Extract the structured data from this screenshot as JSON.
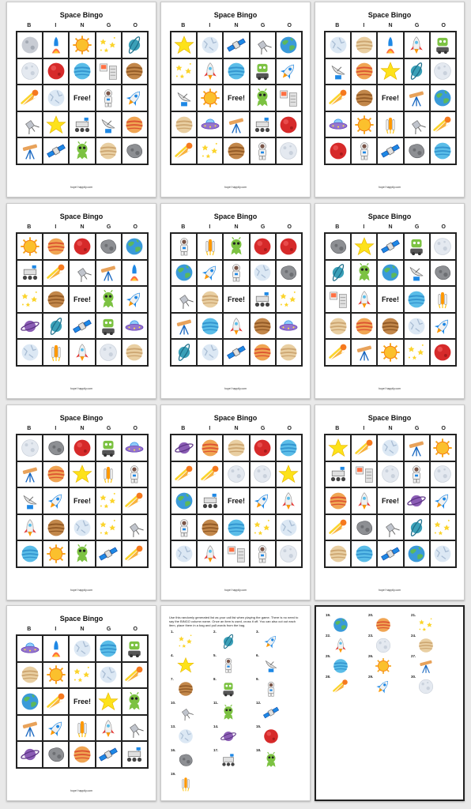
{
  "cards": [
    {
      "title": "Space Bingo",
      "letters": [
        "B",
        "I",
        "N",
        "G",
        "O"
      ],
      "footer": "hope! happily.com",
      "cells": [
        "planet-gray",
        "rocket-launch",
        "sun",
        "stars",
        "planet-ring-blue",
        "moon",
        "planet-red",
        "planet-blue",
        "mission-control",
        "planet-brown",
        "comet",
        "planet-ice",
        "free",
        "astronaut",
        "rocket-blue",
        "satellite",
        "star",
        "rover",
        "satellite-dish",
        "planet-jupiter",
        "telescope",
        "satellite-solar",
        "alien",
        "planet-tan",
        "asteroid"
      ]
    },
    {
      "title": "Space Bingo",
      "letters": [
        "B",
        "I",
        "N",
        "G",
        "O"
      ],
      "footer": "hope! happily.com",
      "cells": [
        "star",
        "planet-ice",
        "satellite-solar",
        "satellite",
        "earth",
        "stars",
        "rocket",
        "planet-blue",
        "alien-robot",
        "rocket-blue",
        "satellite-dish",
        "sun",
        "free",
        "alien",
        "mission-control",
        "planet-tan",
        "ufo",
        "telescope",
        "rover",
        "planet-red",
        "comet",
        "stars",
        "planet-brown",
        "astronaut",
        "moon"
      ]
    },
    {
      "title": "Space Bingo",
      "letters": [
        "B",
        "I",
        "N",
        "G",
        "O"
      ],
      "footer": "hope! happily.com",
      "cells": [
        "planet-ice",
        "planet-tan",
        "rocket-launch",
        "rocket",
        "alien-robot",
        "satellite-dish",
        "planet-jupiter",
        "star",
        "planet-ring-blue",
        "moon",
        "comet",
        "planet-brown",
        "free",
        "telescope",
        "earth",
        "ufo",
        "sun",
        "space-shuttle",
        "satellite",
        "comet",
        "planet-red",
        "astronaut",
        "satellite-solar",
        "asteroid",
        "planet-blue"
      ]
    },
    {
      "title": "Space Bingo",
      "letters": [
        "B",
        "I",
        "N",
        "G",
        "O"
      ],
      "footer": "hope! happily.com",
      "cells": [
        "sun",
        "planet-jupiter",
        "planet-red",
        "asteroid",
        "earth",
        "rover",
        "comet",
        "satellite",
        "telescope",
        "rocket-launch",
        "stars",
        "planet-brown",
        "free",
        "alien",
        "rocket-blue",
        "planet-purple",
        "planet-ring-blue",
        "satellite-solar",
        "alien-robot",
        "ufo",
        "planet-ice",
        "space-shuttle",
        "rocket",
        "moon",
        "planet-tan"
      ]
    },
    {
      "title": "Space Bingo",
      "letters": [
        "B",
        "I",
        "N",
        "G",
        "O"
      ],
      "footer": "hope! happily.com",
      "cells": [
        "astronaut",
        "space-shuttle",
        "alien",
        "planet-red",
        "planet-red",
        "earth",
        "rocket-blue",
        "astronaut",
        "planet-ice",
        "asteroid",
        "satellite",
        "planet-tan",
        "free",
        "rover",
        "stars",
        "telescope",
        "planet-blue",
        "rocket",
        "planet-brown",
        "ufo",
        "planet-ring-blue",
        "planet-ice",
        "satellite-solar",
        "planet-jupiter",
        "planet-tan"
      ]
    },
    {
      "title": "Space Bingo",
      "letters": [
        "B",
        "I",
        "N",
        "G",
        "O"
      ],
      "footer": "hope! happily.com",
      "cells": [
        "asteroid",
        "star",
        "satellite-solar",
        "alien-robot",
        "moon",
        "planet-ring-blue",
        "alien",
        "earth",
        "satellite-dish",
        "asteroid",
        "mission-control",
        "rocket",
        "free",
        "planet-blue",
        "space-shuttle",
        "planet-tan",
        "planet-jupiter",
        "planet-brown",
        "planet-ice",
        "rocket-blue",
        "comet",
        "telescope",
        "sun",
        "stars",
        "planet-red"
      ]
    },
    {
      "title": "Space Bingo",
      "letters": [
        "B",
        "I",
        "N",
        "G",
        "O"
      ],
      "footer": "hope! happily.com",
      "cells": [
        "moon",
        "asteroid",
        "planet-red",
        "alien-robot",
        "ufo",
        "telescope",
        "planet-jupiter",
        "star",
        "space-shuttle",
        "astronaut",
        "satellite-dish",
        "rocket-blue",
        "free",
        "stars",
        "comet",
        "rocket",
        "planet-brown",
        "planet-ice",
        "stars",
        "satellite",
        "planet-blue",
        "sun",
        "alien",
        "satellite-solar",
        "comet"
      ]
    },
    {
      "title": "Space Bingo",
      "letters": [
        "B",
        "I",
        "N",
        "G",
        "O"
      ],
      "footer": "hope! happily.com",
      "cells": [
        "planet-purple",
        "planet-jupiter",
        "planet-tan",
        "planet-red",
        "planet-blue",
        "comet",
        "comet",
        "moon",
        "moon",
        "star",
        "earth",
        "rover",
        "free",
        "rocket-blue",
        "rocket",
        "astronaut",
        "planet-brown",
        "planet-blue",
        "stars",
        "planet-ice",
        "planet-ice",
        "rocket",
        "mission-control",
        "astronaut",
        "moon"
      ]
    },
    {
      "title": "Space Bingo",
      "letters": [
        "B",
        "I",
        "N",
        "G",
        "O"
      ],
      "footer": "hope! happily.com",
      "cells": [
        "star",
        "comet",
        "planet-ice",
        "telescope",
        "sun",
        "rover",
        "mission-control",
        "moon",
        "astronaut",
        "moon",
        "planet-jupiter",
        "rocket",
        "free",
        "planet-purple",
        "rocket-blue",
        "comet",
        "asteroid",
        "satellite",
        "planet-ring-blue",
        "stars",
        "planet-tan",
        "planet-blue",
        "satellite-solar",
        "earth",
        "planet-ice"
      ]
    },
    {
      "title": "Space Bingo",
      "letters": [
        "B",
        "I",
        "N",
        "G",
        "O"
      ],
      "footer": "hope! happily.com",
      "cells": [
        "ufo",
        "rocket-launch",
        "planet-ice",
        "planet-blue",
        "alien-robot",
        "planet-tan",
        "sun",
        "stars",
        "planet-ice",
        "comet",
        "earth",
        "comet",
        "free",
        "star",
        "alien",
        "telescope",
        "rocket-blue",
        "space-shuttle",
        "rocket",
        "satellite",
        "planet-purple",
        "asteroid",
        "planet-jupiter",
        "satellite-solar",
        "rover"
      ]
    }
  ],
  "instructions": {
    "text": "Use this randomly generated list as your call list when playing the game. There is no need to say the BINGO column name. Once an item is used, cross it off. You can also cut out each item, place them in a bag and pull words from the bag.",
    "items": [
      {
        "num": "1.",
        "icon": "stars"
      },
      {
        "num": "2.",
        "icon": "planet-ring-blue"
      },
      {
        "num": "3.",
        "icon": "rocket-blue"
      },
      {
        "num": "4.",
        "icon": "star"
      },
      {
        "num": "5.",
        "icon": "astronaut"
      },
      {
        "num": "6.",
        "icon": "satellite-dish"
      },
      {
        "num": "7.",
        "icon": "planet-brown"
      },
      {
        "num": "8.",
        "icon": "alien-robot"
      },
      {
        "num": "9.",
        "icon": "astronaut"
      },
      {
        "num": "10.",
        "icon": "satellite"
      },
      {
        "num": "11.",
        "icon": "alien"
      },
      {
        "num": "12.",
        "icon": "satellite-solar"
      },
      {
        "num": "13.",
        "icon": "planet-ice"
      },
      {
        "num": "14.",
        "icon": "planet-purple"
      },
      {
        "num": "15.",
        "icon": "planet-red"
      },
      {
        "num": "16.",
        "icon": "asteroid"
      },
      {
        "num": "17.",
        "icon": "rover"
      },
      {
        "num": "18.",
        "icon": "alien"
      },
      {
        "num": "19.",
        "icon": "space-shuttle"
      }
    ]
  },
  "answers": {
    "items": [
      {
        "num": "19.",
        "icon": "earth"
      },
      {
        "num": "20.",
        "icon": "planet-jupiter"
      },
      {
        "num": "21.",
        "icon": "stars"
      },
      {
        "num": "22.",
        "icon": "rocket"
      },
      {
        "num": "23.",
        "icon": "moon"
      },
      {
        "num": "24.",
        "icon": "planet-tan"
      },
      {
        "num": "25.",
        "icon": "planet-blue"
      },
      {
        "num": "26.",
        "icon": "sun"
      },
      {
        "num": "27.",
        "icon": "telescope"
      },
      {
        "num": "28.",
        "icon": "comet"
      },
      {
        "num": "29.",
        "icon": "rocket-blue"
      },
      {
        "num": "30.",
        "icon": "moon"
      }
    ]
  }
}
